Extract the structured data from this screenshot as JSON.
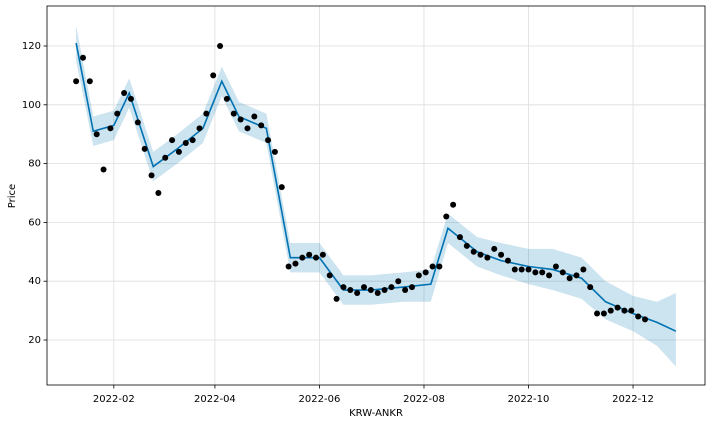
{
  "chart_data": {
    "type": "line",
    "x_label": "KRW-ANKR",
    "y_label": "Price",
    "xlim": [
      "2021-12-24",
      "2023-01-12"
    ],
    "xticks": [
      {
        "value": "2022-02-01",
        "label": "2022-02"
      },
      {
        "value": "2022-04-01",
        "label": "2022-04"
      },
      {
        "value": "2022-06-01",
        "label": "2022-06"
      },
      {
        "value": "2022-08-01",
        "label": "2022-08"
      },
      {
        "value": "2022-10-01",
        "label": "2022-10"
      },
      {
        "value": "2022-12-01",
        "label": "2022-12"
      }
    ],
    "ylim": [
      4.7,
      133.6
    ],
    "yticks": [
      20,
      40,
      60,
      80,
      100,
      120
    ],
    "grid": true,
    "series": [
      {
        "type": "band",
        "color": "#0072B2",
        "x": [
          "2022-01-10",
          "2022-01-20",
          "2022-02-01",
          "2022-02-10",
          "2022-02-24",
          "2022-03-10",
          "2022-03-25",
          "2022-04-05",
          "2022-04-15",
          "2022-05-01",
          "2022-05-15",
          "2022-06-01",
          "2022-06-15",
          "2022-07-01",
          "2022-07-20",
          "2022-08-05",
          "2022-08-15",
          "2022-09-01",
          "2022-09-15",
          "2022-10-01",
          "2022-10-15",
          "2022-11-01",
          "2022-11-15",
          "2022-12-01",
          "2022-12-15",
          "2022-12-26"
        ],
        "lower": [
          115,
          86,
          88,
          99,
          74,
          80,
          87,
          103,
          91,
          87,
          43,
          43,
          32,
          32,
          33,
          33,
          53,
          45,
          42,
          39,
          37,
          34,
          27,
          23,
          18,
          11
        ],
        "upper": [
          127,
          96,
          98,
          109,
          84,
          90,
          97,
          113,
          101,
          97,
          53,
          53,
          42,
          42,
          43,
          44,
          63,
          55,
          53,
          51,
          51,
          48,
          40,
          35,
          33,
          36
        ]
      },
      {
        "type": "line",
        "color": "#0072B2",
        "x": [
          "2022-01-10",
          "2022-01-20",
          "2022-02-01",
          "2022-02-10",
          "2022-02-24",
          "2022-03-10",
          "2022-03-25",
          "2022-04-05",
          "2022-04-15",
          "2022-05-01",
          "2022-05-15",
          "2022-06-01",
          "2022-06-15",
          "2022-07-01",
          "2022-07-20",
          "2022-08-05",
          "2022-08-15",
          "2022-09-01",
          "2022-09-15",
          "2022-10-01",
          "2022-10-15",
          "2022-11-01",
          "2022-11-15",
          "2022-12-01",
          "2022-12-15",
          "2022-12-26"
        ],
        "values": [
          121,
          91,
          93,
          104,
          79,
          85,
          92,
          108,
          96,
          92,
          48,
          48,
          37,
          37,
          38,
          39,
          58,
          50,
          47,
          45,
          44,
          41,
          33,
          29,
          26,
          23
        ]
      },
      {
        "type": "scatter",
        "color": "#000000",
        "x": [
          "2022-01-10",
          "2022-01-14",
          "2022-01-18",
          "2022-01-22",
          "2022-01-26",
          "2022-01-30",
          "2022-02-03",
          "2022-02-07",
          "2022-02-11",
          "2022-02-15",
          "2022-02-19",
          "2022-02-23",
          "2022-02-27",
          "2022-03-03",
          "2022-03-07",
          "2022-03-11",
          "2022-03-15",
          "2022-03-19",
          "2022-03-23",
          "2022-03-27",
          "2022-03-31",
          "2022-04-04",
          "2022-04-08",
          "2022-04-12",
          "2022-04-16",
          "2022-04-20",
          "2022-04-24",
          "2022-04-28",
          "2022-05-02",
          "2022-05-06",
          "2022-05-10",
          "2022-05-14",
          "2022-05-18",
          "2022-05-22",
          "2022-05-26",
          "2022-05-30",
          "2022-06-03",
          "2022-06-07",
          "2022-06-11",
          "2022-06-15",
          "2022-06-19",
          "2022-06-23",
          "2022-06-27",
          "2022-07-01",
          "2022-07-05",
          "2022-07-09",
          "2022-07-13",
          "2022-07-17",
          "2022-07-21",
          "2022-07-25",
          "2022-07-29",
          "2022-08-02",
          "2022-08-06",
          "2022-08-10",
          "2022-08-14",
          "2022-08-18",
          "2022-08-22",
          "2022-08-26",
          "2022-08-30",
          "2022-09-03",
          "2022-09-07",
          "2022-09-11",
          "2022-09-15",
          "2022-09-19",
          "2022-09-23",
          "2022-09-27",
          "2022-10-01",
          "2022-10-05",
          "2022-10-09",
          "2022-10-13",
          "2022-10-17",
          "2022-10-21",
          "2022-10-25",
          "2022-10-29",
          "2022-11-02",
          "2022-11-06",
          "2022-11-10",
          "2022-11-14",
          "2022-11-18",
          "2022-11-22",
          "2022-11-26",
          "2022-11-30",
          "2022-12-04",
          "2022-12-08"
        ],
        "values": [
          108,
          116,
          108,
          90,
          78,
          92,
          97,
          104,
          102,
          94,
          85,
          76,
          70,
          82,
          88,
          84,
          87,
          88,
          92,
          97,
          110,
          120,
          102,
          97,
          95,
          92,
          96,
          93,
          88,
          84,
          72,
          45,
          46,
          48,
          49,
          48,
          49,
          42,
          34,
          38,
          37,
          36,
          38,
          37,
          36,
          37,
          38,
          40,
          37,
          38,
          42,
          43,
          45,
          45,
          62,
          66,
          55,
          52,
          50,
          49,
          48,
          51,
          49,
          47,
          44,
          44,
          44,
          43,
          43,
          42,
          45,
          43,
          41,
          42,
          44,
          38,
          29,
          29,
          30,
          31,
          30,
          30,
          28,
          27
        ]
      }
    ]
  }
}
